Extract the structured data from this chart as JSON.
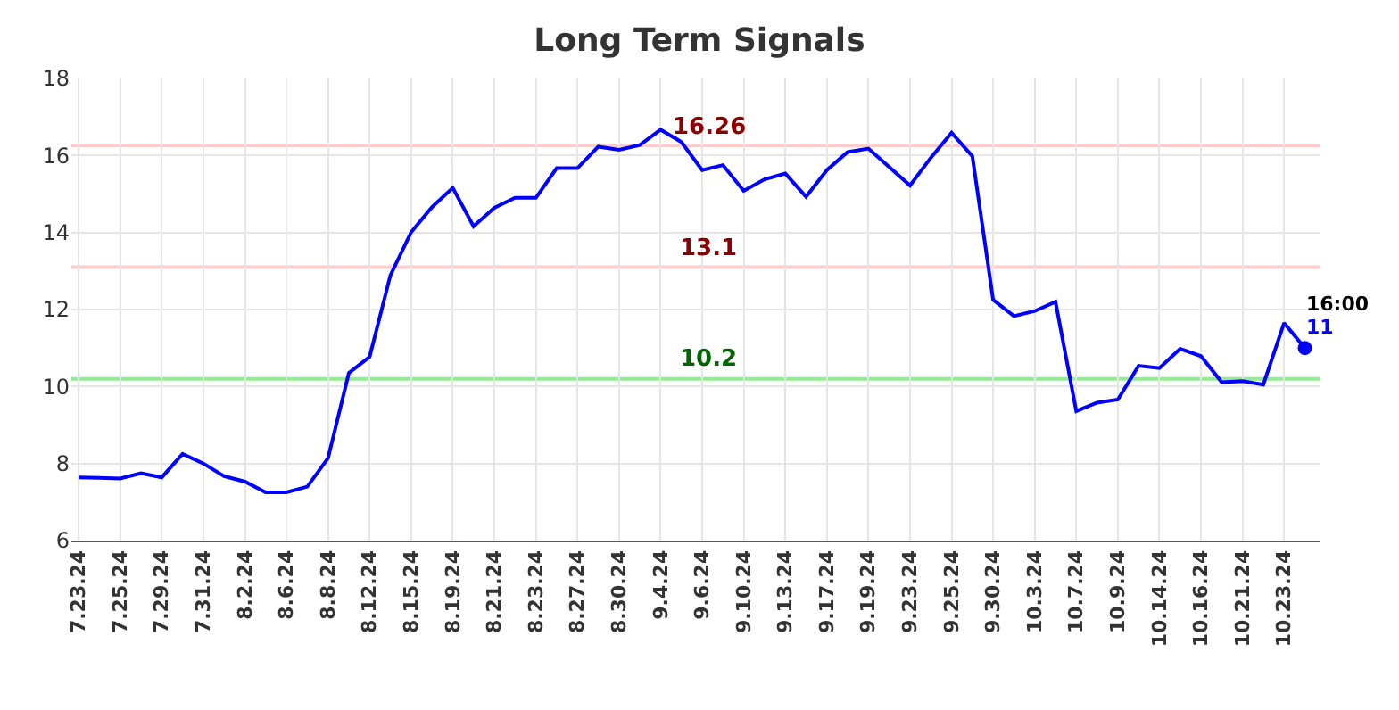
{
  "chart_data": {
    "type": "line",
    "title": "Long Term Signals",
    "categories": [
      "7.23.24",
      null,
      "7.25.24",
      null,
      "7.29.24",
      null,
      "7.31.24",
      null,
      "8.2.24",
      null,
      "8.6.24",
      null,
      "8.8.24",
      null,
      "8.12.24",
      null,
      "8.15.24",
      null,
      "8.19.24",
      null,
      "8.21.24",
      null,
      "8.23.24",
      null,
      "8.27.24",
      null,
      "8.30.24",
      null,
      "9.4.24",
      null,
      "9.6.24",
      null,
      "9.10.24",
      null,
      "9.13.24",
      null,
      "9.17.24",
      null,
      "9.19.24",
      null,
      "9.23.24",
      null,
      "9.25.24",
      null,
      "9.30.24",
      null,
      "10.3.24",
      null,
      "10.7.24",
      null,
      "10.9.24",
      null,
      "10.14.24",
      null,
      "10.16.24",
      null,
      "10.21.24",
      null,
      "10.23.24",
      null
    ],
    "series": [
      {
        "color": "#0000ff",
        "values": [
          7.64,
          7.63,
          7.61,
          7.75,
          7.64,
          8.25,
          8.0,
          7.67,
          7.53,
          7.25,
          7.25,
          7.4,
          8.14,
          10.35,
          10.77,
          12.89,
          14.01,
          14.66,
          15.16,
          14.16,
          14.64,
          14.9,
          14.9,
          15.67,
          15.67,
          16.23,
          16.15,
          16.27,
          16.67,
          16.35,
          15.62,
          15.75,
          15.08,
          15.38,
          15.53,
          14.93,
          15.62,
          16.09,
          16.18,
          15.7,
          15.22,
          15.94,
          16.59,
          15.98,
          12.25,
          11.83,
          11.96,
          12.2,
          9.36,
          9.58,
          9.66,
          10.54,
          10.48,
          10.98,
          10.79,
          10.11,
          10.14,
          10.05,
          11.65,
          11.0
        ],
        "value_labels": [
          null,
          null,
          null,
          null,
          null,
          null,
          null,
          null,
          null,
          null,
          null,
          null,
          null,
          null,
          null,
          null,
          null,
          null,
          null,
          null,
          null,
          null,
          null,
          null,
          null,
          null,
          null,
          null,
          null,
          null,
          null,
          null,
          null,
          null,
          null,
          null,
          null,
          null,
          null,
          null,
          null,
          null,
          null,
          null,
          null,
          null,
          null,
          null,
          null,
          null,
          null,
          null,
          null,
          null,
          null,
          null,
          null,
          null,
          null,
          "11"
        ]
      }
    ],
    "ylim": [
      6,
      18
    ],
    "yticks": [
      6,
      8,
      10,
      12,
      14,
      16,
      18
    ],
    "grid": true,
    "ref_lines": [
      {
        "axis": "y",
        "value": 16.26,
        "label": "16.26",
        "color": "#ffcccc"
      },
      {
        "axis": "y",
        "value": 13.1,
        "label": "13.1",
        "color": "#ffcccc"
      },
      {
        "axis": "y",
        "value": 10.2,
        "label": "10.2",
        "color": "#90ee90"
      }
    ],
    "annotations": [
      "16:00"
    ]
  }
}
